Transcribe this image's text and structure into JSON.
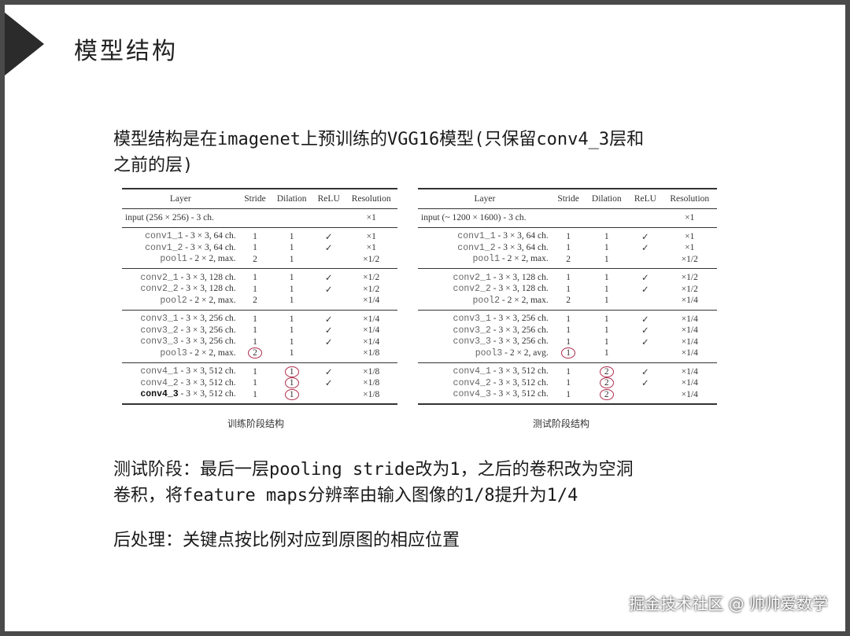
{
  "slide_title": "模型结构",
  "intro": [
    "模型结构是在imagenet上预训练的VGG16模型(只保留conv4_3层和",
    "之前的层)"
  ],
  "tables": [
    {
      "caption": "训练阶段结构",
      "headers": [
        "Layer",
        "Stride",
        "Dilation",
        "ReLU",
        "Resolution"
      ],
      "input": {
        "layer": "input (256 × 256) - 3 ch.",
        "resolution": "×1"
      },
      "groups": [
        [
          [
            "conv1_1",
            "- 3 × 3, 64 ch.",
            "1",
            "1",
            "✓",
            "×1"
          ],
          [
            "conv1_2",
            "- 3 × 3, 64 ch.",
            "1",
            "1",
            "✓",
            "×1"
          ],
          [
            "pool1",
            "- 2 × 2, max.",
            "2",
            "1",
            "",
            "×1/2"
          ]
        ],
        [
          [
            "conv2_1",
            "- 3 × 3, 128 ch.",
            "1",
            "1",
            "✓",
            "×1/2"
          ],
          [
            "conv2_2",
            "- 3 × 3, 128 ch.",
            "1",
            "1",
            "✓",
            "×1/2"
          ],
          [
            "pool2",
            "- 2 × 2, max.",
            "2",
            "1",
            "",
            "×1/4"
          ]
        ],
        [
          [
            "conv3_1",
            "- 3 × 3, 256 ch.",
            "1",
            "1",
            "✓",
            "×1/4"
          ],
          [
            "conv3_2",
            "- 3 × 3, 256 ch.",
            "1",
            "1",
            "✓",
            "×1/4"
          ],
          [
            "conv3_3",
            "- 3 × 3, 256 ch.",
            "1",
            "1",
            "✓",
            "×1/4"
          ],
          [
            "pool3",
            "- 2 × 2, max.",
            "2",
            "1",
            "",
            "×1/8"
          ]
        ],
        [
          [
            "conv4_1",
            "- 3 × 3, 512 ch.",
            "1",
            "1",
            "✓",
            "×1/8"
          ],
          [
            "conv4_2",
            "- 3 × 3, 512 ch.",
            "1",
            "1",
            "✓",
            "×1/8"
          ],
          [
            "conv4_3",
            "- 3 × 3, 512 ch.",
            "1",
            "1",
            "",
            "×1/8"
          ]
        ]
      ],
      "circled": {
        "stride": "pool3",
        "dilation": "conv4"
      }
    },
    {
      "caption": "测试阶段结构",
      "headers": [
        "Layer",
        "Stride",
        "Dilation",
        "ReLU",
        "Resolution"
      ],
      "input": {
        "layer": "input (~ 1200 × 1600) - 3 ch.",
        "resolution": "×1"
      },
      "groups": [
        [
          [
            "conv1_1",
            "- 3 × 3, 64 ch.",
            "1",
            "1",
            "✓",
            "×1"
          ],
          [
            "conv1_2",
            "- 3 × 3, 64 ch.",
            "1",
            "1",
            "✓",
            "×1"
          ],
          [
            "pool1",
            "- 2 × 2, max.",
            "2",
            "1",
            "",
            "×1/2"
          ]
        ],
        [
          [
            "conv2_1",
            "- 3 × 3, 128 ch.",
            "1",
            "1",
            "✓",
            "×1/2"
          ],
          [
            "conv2_2",
            "- 3 × 3, 128 ch.",
            "1",
            "1",
            "✓",
            "×1/2"
          ],
          [
            "pool2",
            "- 2 × 2, max.",
            "2",
            "1",
            "",
            "×1/4"
          ]
        ],
        [
          [
            "conv3_1",
            "- 3 × 3, 256 ch.",
            "1",
            "1",
            "✓",
            "×1/4"
          ],
          [
            "conv3_2",
            "- 3 × 3, 256 ch.",
            "1",
            "1",
            "✓",
            "×1/4"
          ],
          [
            "conv3_3",
            "- 3 × 3, 256 ch.",
            "1",
            "1",
            "✓",
            "×1/4"
          ],
          [
            "pool3",
            "- 2 × 2, avg.",
            "1",
            "1",
            "",
            "×1/4"
          ]
        ],
        [
          [
            "conv4_1",
            "- 3 × 3, 512 ch.",
            "1",
            "2",
            "✓",
            "×1/4"
          ],
          [
            "conv4_2",
            "- 3 × 3, 512 ch.",
            "1",
            "2",
            "✓",
            "×1/4"
          ],
          [
            "conv4_3",
            "- 3 × 3, 512 ch.",
            "1",
            "2",
            "",
            "×1/4"
          ]
        ]
      ],
      "circled": {
        "stride": "pool3",
        "dilation": "conv4"
      }
    }
  ],
  "test_stage": [
    "测试阶段：最后一层pooling stride改为1，之后的卷积改为空洞",
    "卷积，将feature maps分辨率由输入图像的1/8提升为1/4"
  ],
  "post_process": "后处理：关键点按比例对应到原图的相应位置",
  "watermark": "掘金技术社区 @ 帅帅爱数学",
  "colors": {
    "circle": "#b03050",
    "frame": "#4a4a4a"
  }
}
